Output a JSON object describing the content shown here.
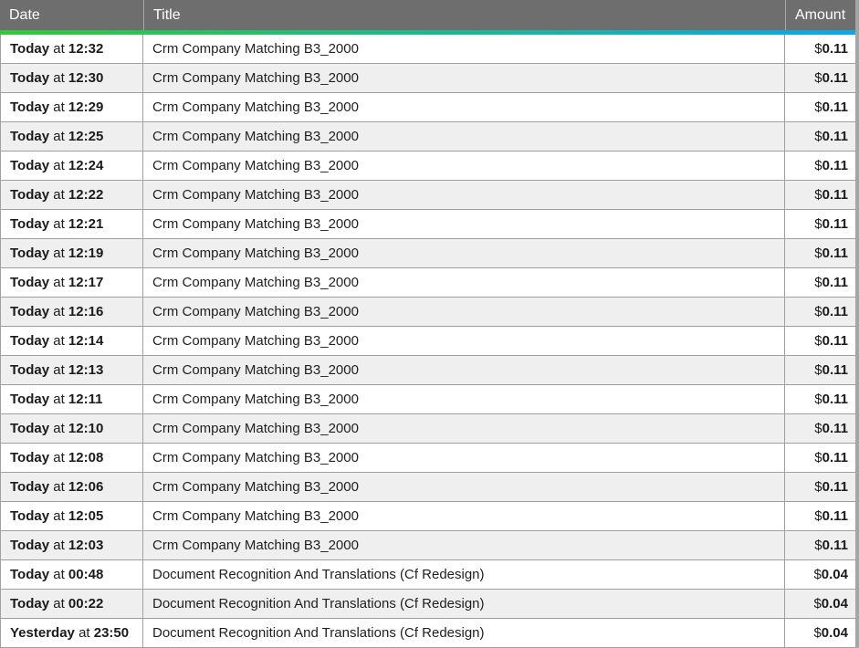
{
  "colors": {
    "header_bg": "#6e6e6e",
    "header_text": "#ffffff",
    "accent_gradient_left": "#34c73c",
    "accent_gradient_right": "#0ca6e4",
    "row_alt_bg": "#efefef",
    "border": "#a0a0a0"
  },
  "table": {
    "columns": [
      {
        "label": "Date"
      },
      {
        "label": "Title"
      },
      {
        "label": "Amount"
      }
    ],
    "rows": [
      {
        "date_day": "Today",
        "date_connector": "at",
        "date_time": "12:32",
        "title": "Crm Company Matching B3_2000",
        "currency": "$",
        "amount": "0.11"
      },
      {
        "date_day": "Today",
        "date_connector": "at",
        "date_time": "12:30",
        "title": "Crm Company Matching B3_2000",
        "currency": "$",
        "amount": "0.11"
      },
      {
        "date_day": "Today",
        "date_connector": "at",
        "date_time": "12:29",
        "title": "Crm Company Matching B3_2000",
        "currency": "$",
        "amount": "0.11"
      },
      {
        "date_day": "Today",
        "date_connector": "at",
        "date_time": "12:25",
        "title": "Crm Company Matching B3_2000",
        "currency": "$",
        "amount": "0.11"
      },
      {
        "date_day": "Today",
        "date_connector": "at",
        "date_time": "12:24",
        "title": "Crm Company Matching B3_2000",
        "currency": "$",
        "amount": "0.11"
      },
      {
        "date_day": "Today",
        "date_connector": "at",
        "date_time": "12:22",
        "title": "Crm Company Matching B3_2000",
        "currency": "$",
        "amount": "0.11"
      },
      {
        "date_day": "Today",
        "date_connector": "at",
        "date_time": "12:21",
        "title": "Crm Company Matching B3_2000",
        "currency": "$",
        "amount": "0.11"
      },
      {
        "date_day": "Today",
        "date_connector": "at",
        "date_time": "12:19",
        "title": "Crm Company Matching B3_2000",
        "currency": "$",
        "amount": "0.11"
      },
      {
        "date_day": "Today",
        "date_connector": "at",
        "date_time": "12:17",
        "title": "Crm Company Matching B3_2000",
        "currency": "$",
        "amount": "0.11"
      },
      {
        "date_day": "Today",
        "date_connector": "at",
        "date_time": "12:16",
        "title": "Crm Company Matching B3_2000",
        "currency": "$",
        "amount": "0.11"
      },
      {
        "date_day": "Today",
        "date_connector": "at",
        "date_time": "12:14",
        "title": "Crm Company Matching B3_2000",
        "currency": "$",
        "amount": "0.11"
      },
      {
        "date_day": "Today",
        "date_connector": "at",
        "date_time": "12:13",
        "title": "Crm Company Matching B3_2000",
        "currency": "$",
        "amount": "0.11"
      },
      {
        "date_day": "Today",
        "date_connector": "at",
        "date_time": "12:11",
        "title": "Crm Company Matching B3_2000",
        "currency": "$",
        "amount": "0.11"
      },
      {
        "date_day": "Today",
        "date_connector": "at",
        "date_time": "12:10",
        "title": "Crm Company Matching B3_2000",
        "currency": "$",
        "amount": "0.11"
      },
      {
        "date_day": "Today",
        "date_connector": "at",
        "date_time": "12:08",
        "title": "Crm Company Matching B3_2000",
        "currency": "$",
        "amount": "0.11"
      },
      {
        "date_day": "Today",
        "date_connector": "at",
        "date_time": "12:06",
        "title": "Crm Company Matching B3_2000",
        "currency": "$",
        "amount": "0.11"
      },
      {
        "date_day": "Today",
        "date_connector": "at",
        "date_time": "12:05",
        "title": "Crm Company Matching B3_2000",
        "currency": "$",
        "amount": "0.11"
      },
      {
        "date_day": "Today",
        "date_connector": "at",
        "date_time": "12:03",
        "title": "Crm Company Matching B3_2000",
        "currency": "$",
        "amount": "0.11"
      },
      {
        "date_day": "Today",
        "date_connector": "at",
        "date_time": "00:48",
        "title": "Document Recognition And Translations (Cf Redesign)",
        "currency": "$",
        "amount": "0.04"
      },
      {
        "date_day": "Today",
        "date_connector": "at",
        "date_time": "00:22",
        "title": "Document Recognition And Translations (Cf Redesign)",
        "currency": "$",
        "amount": "0.04"
      },
      {
        "date_day": "Yesterday",
        "date_connector": "at",
        "date_time": "23:50",
        "title": "Document Recognition And Translations (Cf Redesign)",
        "currency": "$",
        "amount": "0.04"
      }
    ]
  }
}
